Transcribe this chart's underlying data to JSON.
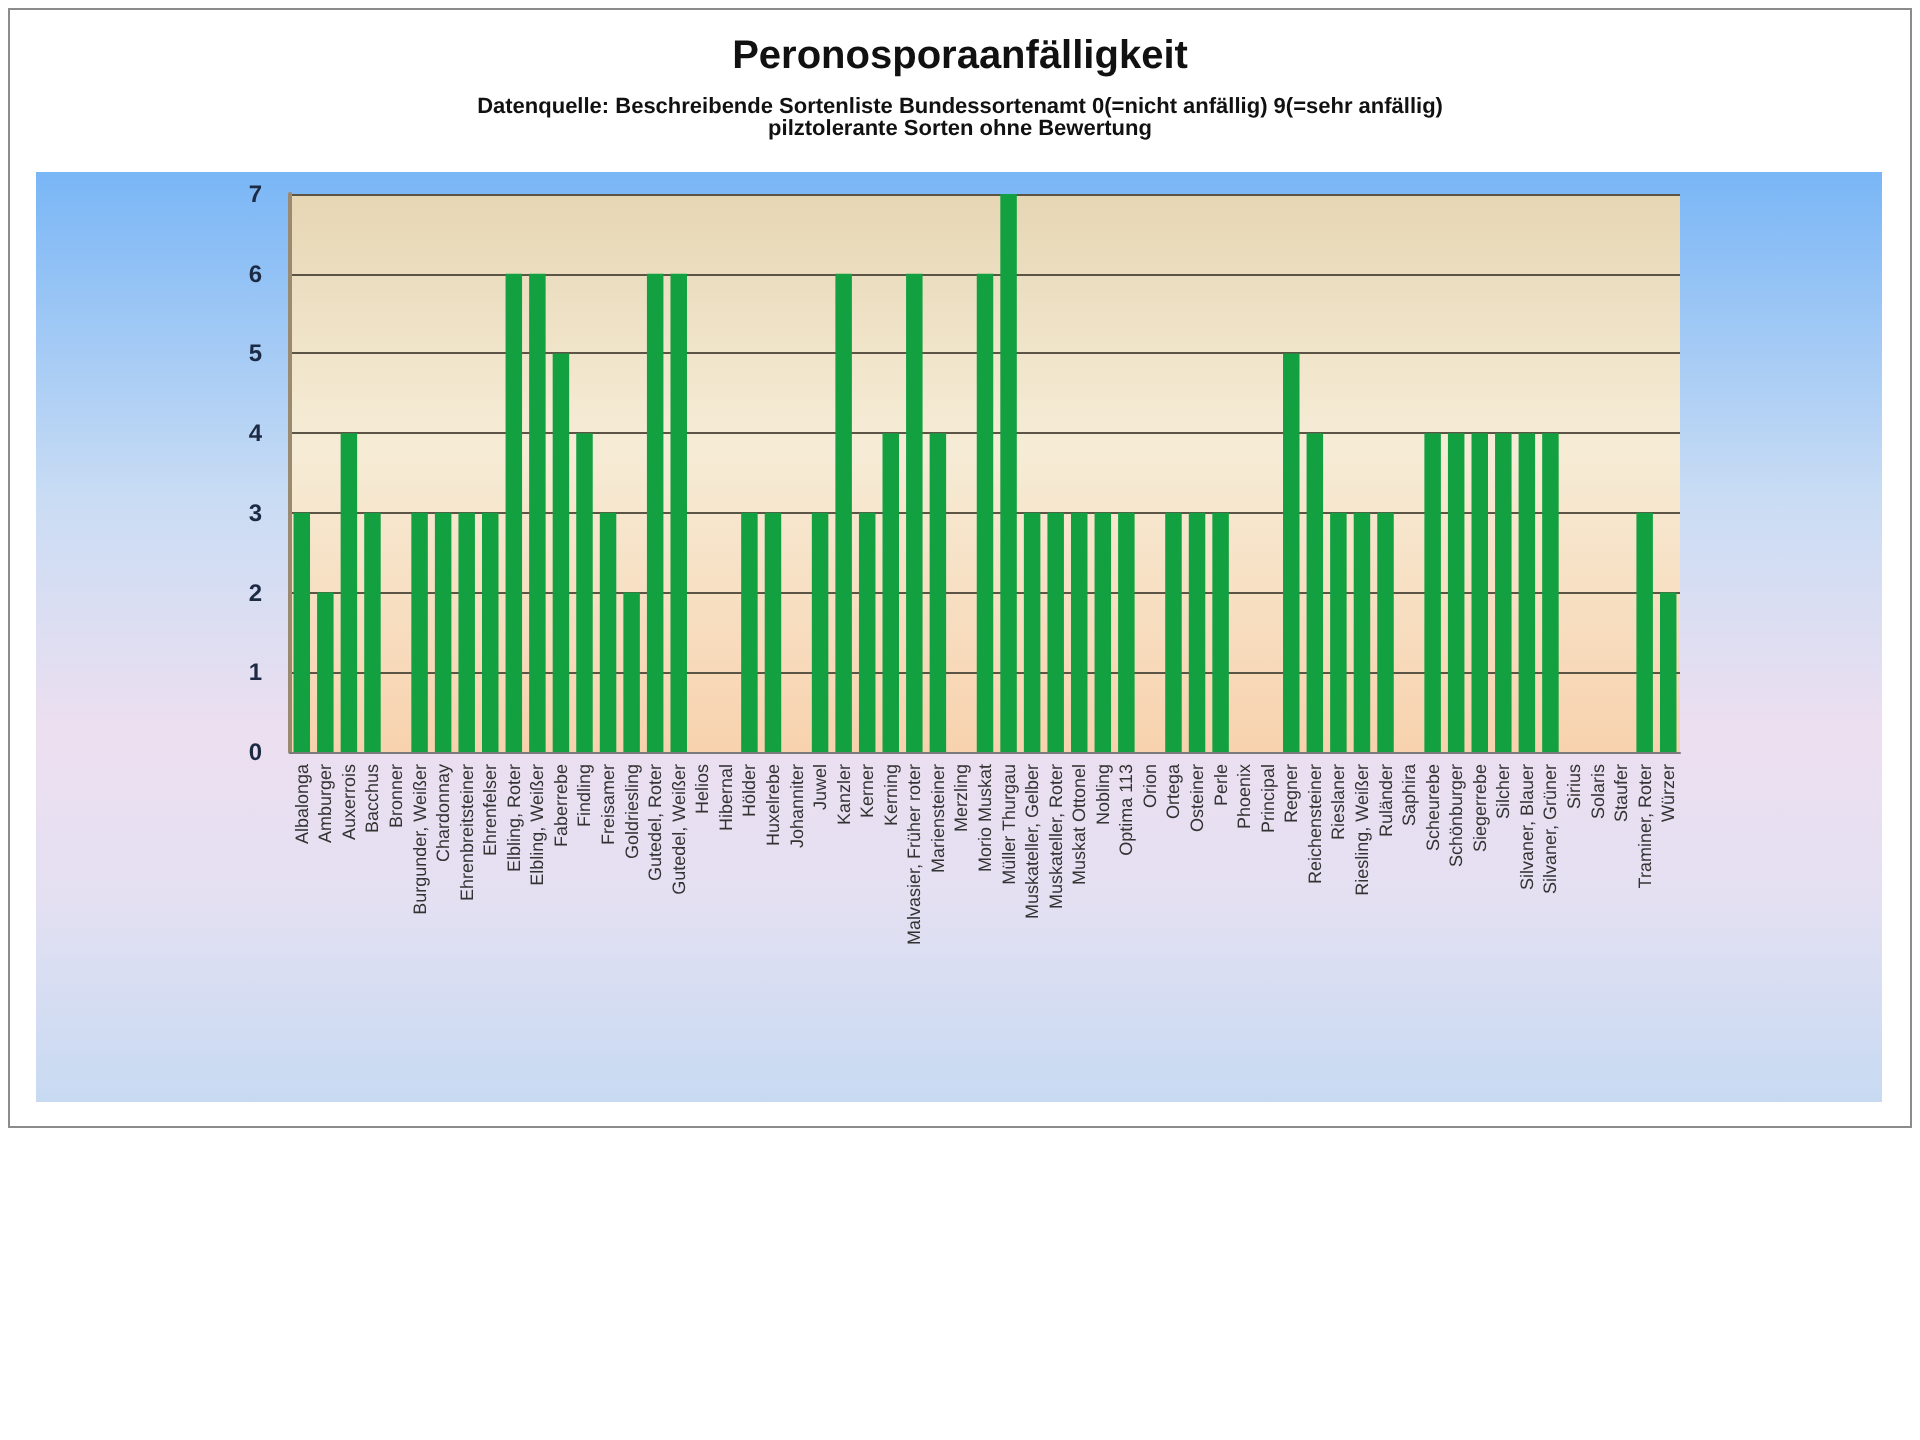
{
  "chart_data": {
    "type": "bar",
    "title": "Peronosporaanfälligkeit",
    "subtitle": "Datenquelle: Beschreibende Sortenliste Bundessortenamt 0(=nicht anfällig) 9(=sehr anfällig)",
    "annotations": [
      "pilztolerante Sorten ohne Bewertung"
    ],
    "categories": [
      "Albalonga",
      "Amburger",
      "Auxerrois",
      "Bacchus",
      "Bronner",
      "Burgunder, Weißer",
      "Chardonnay",
      "Ehrenbreitsteiner",
      "Ehrenfelser",
      "Elbling, Roter",
      "Elbling, Weißer",
      "Faberrebe",
      "Findling",
      "Freisamer",
      "Goldriesling",
      "Gutedel, Roter",
      "Gutedel, Weißer",
      "Helios",
      "Hibernal",
      "Hölder",
      "Huxelrebe",
      "Johanniter",
      "Juwel",
      "Kanzler",
      "Kerner",
      "Kerning",
      "Malvasier, Früher roter",
      "Mariensteiner",
      "Merzling",
      "Morio Muskat",
      "Müller Thurgau",
      "Muskateller, Gelber",
      "Muskateller, Roter",
      "Muskat Ottonel",
      "Nobling",
      "Optima 113",
      "Orion",
      "Ortega",
      "Osteiner",
      "Perle",
      "Phoenix",
      "Principal",
      "Regner",
      "Reichensteiner",
      "Rieslaner",
      "Riesling, Weißer",
      "Ruländer",
      "Saphira",
      "Scheurebe",
      "Schönburger",
      "Siegerrebe",
      "Silcher",
      "Silvaner, Blauer",
      "Silvaner, Grüner",
      "Sirius",
      "Solaris",
      "Staufer",
      "Traminer, Roter",
      "Würzer"
    ],
    "values": [
      3,
      2,
      4,
      3,
      0,
      3,
      3,
      3,
      3,
      6,
      6,
      5,
      4,
      3,
      2,
      6,
      6,
      0,
      0,
      3,
      3,
      0,
      3,
      6,
      3,
      4,
      6,
      4,
      0,
      6,
      7,
      3,
      3,
      3,
      3,
      3,
      0,
      3,
      3,
      3,
      0,
      0,
      5,
      4,
      3,
      3,
      3,
      0,
      4,
      4,
      4,
      4,
      4,
      4,
      0,
      0,
      0,
      3,
      2
    ],
    "color": "#12a040",
    "ylim": [
      0,
      7
    ],
    "yticks": [
      0,
      1,
      2,
      3,
      4,
      5,
      6,
      7
    ],
    "grid": "y"
  }
}
